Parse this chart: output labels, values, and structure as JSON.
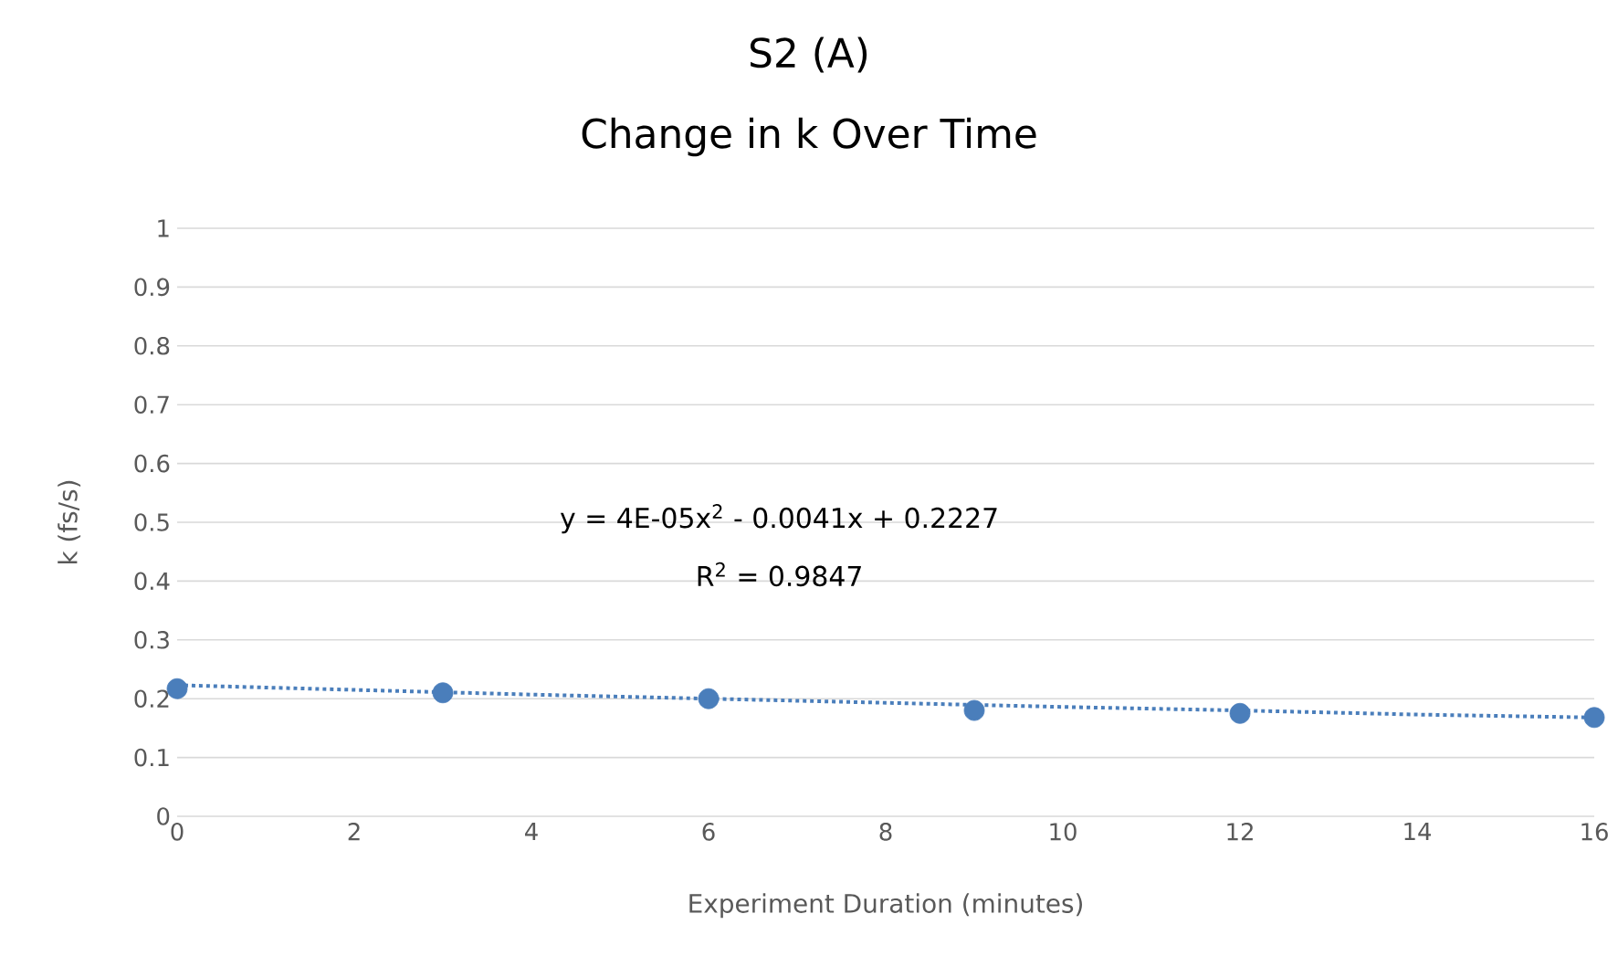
{
  "chart_data": {
    "type": "scatter",
    "title": "S2 (A)",
    "subtitle": "Change in k Over Time",
    "xlabel": "Experiment Duration (minutes)",
    "ylabel": "k (fs/s)",
    "x": [
      0,
      3,
      6,
      9,
      12,
      16
    ],
    "series": [
      {
        "color": "#4a7ebb",
        "values": [
          0.217,
          0.21,
          0.2,
          0.18,
          0.175,
          0.168
        ],
        "marker": "circle"
      },
      {
        "type": "line",
        "color": "#4a7ebb",
        "line_style": "dotted",
        "marker": "none",
        "x": [
          0,
          2,
          4,
          6,
          8,
          10,
          12,
          14,
          16
        ],
        "values": [
          0.223,
          0.215,
          0.207,
          0.2,
          0.193,
          0.186,
          0.18,
          0.173,
          0.168
        ]
      }
    ],
    "xlim": [
      0,
      16
    ],
    "xticks": [
      0,
      2,
      4,
      6,
      8,
      10,
      12,
      14,
      16
    ],
    "ylim": [
      0,
      1
    ],
    "yticks": [
      0,
      0.1,
      0.2,
      0.3,
      0.4,
      0.5,
      0.6,
      0.7,
      0.8,
      0.9,
      1
    ],
    "grid": "y",
    "annotations": [
      "y = 4E-05x$^{2}$ - 0.0041x + 0.2227",
      "R$^{2}$ = 0.9847"
    ]
  }
}
